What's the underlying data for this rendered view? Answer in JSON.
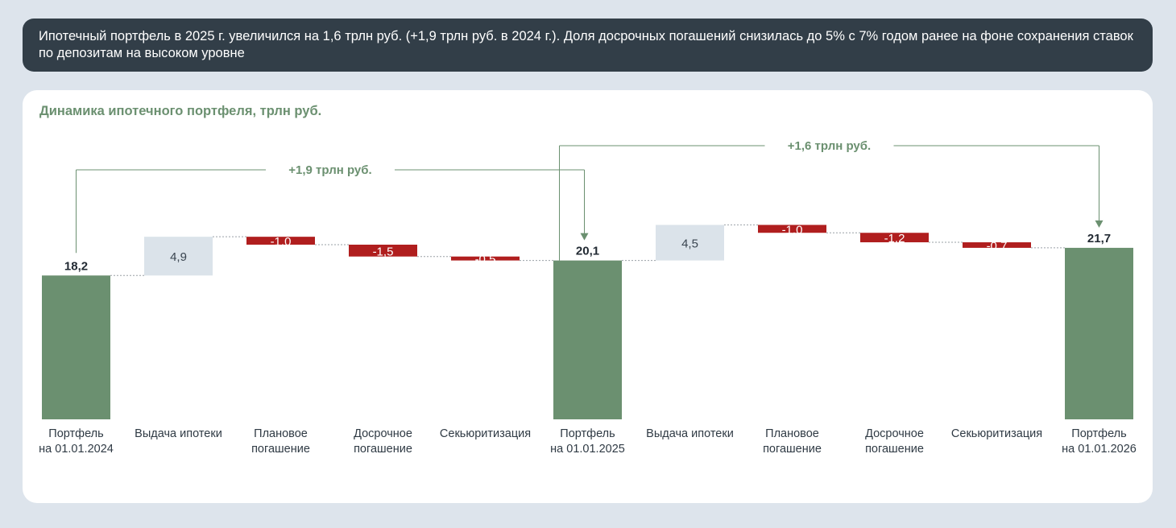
{
  "banner": {
    "text": "Ипотечный портфель в 2025 г. увеличился на 1,6 трлн руб. (+1,9 трлн руб. в 2024 г.). Доля досрочных погашений снизилась до 5% с 7% годом ранее на фоне сохранения ставок по депозитам на высоком уровне"
  },
  "chart_data": {
    "type": "waterfall",
    "title": "Динамика ипотечного портфеля, трлн руб.",
    "unit": "трлн руб.",
    "steps": [
      {
        "label": [
          "Портфель",
          "на 01.01.2024"
        ],
        "kind": "total",
        "value": 18.2,
        "display": "18,2"
      },
      {
        "label": [
          "Выдача  ипотеки"
        ],
        "kind": "increase",
        "value": 4.9,
        "display": "4,9"
      },
      {
        "label": [
          "Плановое",
          "погашение"
        ],
        "kind": "decrease",
        "value": -1.0,
        "display": "-1,0"
      },
      {
        "label": [
          "Досрочное",
          "погашение"
        ],
        "kind": "decrease",
        "value": -1.5,
        "display": "-1,5"
      },
      {
        "label": [
          "Секьюритизация"
        ],
        "kind": "decrease",
        "value": -0.5,
        "display": "-0,5"
      },
      {
        "label": [
          "Портфель",
          "на 01.01.2025"
        ],
        "kind": "total",
        "value": 20.1,
        "display": "20,1"
      },
      {
        "label": [
          "Выдача ипотеки"
        ],
        "kind": "increase",
        "value": 4.5,
        "display": "4,5"
      },
      {
        "label": [
          "Плановое",
          "погашение"
        ],
        "kind": "decrease",
        "value": -1.0,
        "display": "-1,0"
      },
      {
        "label": [
          "Досрочное",
          "погашение"
        ],
        "kind": "decrease",
        "value": -1.2,
        "display": "-1,2"
      },
      {
        "label": [
          "Секьюритизация"
        ],
        "kind": "decrease",
        "value": -0.7,
        "display": "-0,7"
      },
      {
        "label": [
          "Портфель",
          "на 01.01.2026"
        ],
        "kind": "total",
        "value": 21.7,
        "display": "21,7"
      }
    ],
    "annotations": [
      {
        "text": "+1,9 трлн руб.",
        "from_step": 0,
        "to_step": 5
      },
      {
        "text": "+1,6 трлн руб.",
        "from_step": 5,
        "to_step": 10
      }
    ],
    "colors": {
      "total": "#6b9070",
      "increase": "#dbe3ea",
      "decrease": "#b01e1e",
      "annotation": "#6b9070"
    }
  }
}
